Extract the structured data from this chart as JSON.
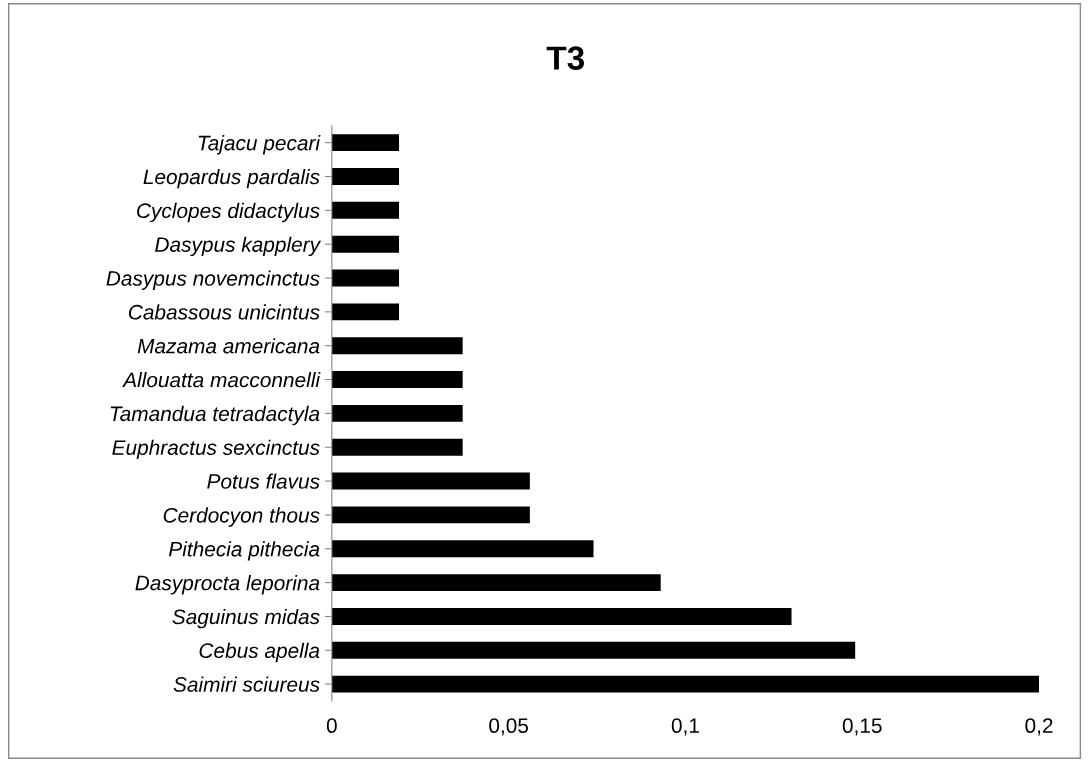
{
  "chart_data": {
    "type": "bar",
    "orientation": "horizontal",
    "title": "T3",
    "categories": [
      "Tajacu pecari",
      "Leopardus pardalis",
      "Cyclopes didactylus",
      "Dasypus kapplery",
      "Dasypus novemcinctus",
      "Cabassous unicintus",
      "Mazama americana",
      "Allouatta macconnelli",
      "Tamandua tetradactyla",
      "Euphractus sexcinctus",
      "Potus flavus",
      "Cerdocyon thous",
      "Pithecia pithecia",
      "Dasyprocta leporina",
      "Saguinus midas",
      "Cebus apella",
      "Saimiri sciureus"
    ],
    "values": [
      0.019,
      0.019,
      0.019,
      0.019,
      0.019,
      0.019,
      0.037,
      0.037,
      0.037,
      0.037,
      0.056,
      0.056,
      0.074,
      0.093,
      0.13,
      0.148,
      0.2
    ],
    "color": "#000000",
    "xlim": [
      0,
      0.2
    ],
    "xticks": [
      {
        "value": 0,
        "label": "0"
      },
      {
        "value": 0.05,
        "label": "0,05"
      },
      {
        "value": 0.1,
        "label": "0,1"
      },
      {
        "value": 0.15,
        "label": "0,15"
      },
      {
        "value": 0.2,
        "label": "0,2"
      }
    ],
    "grid": false,
    "legend": false
  }
}
